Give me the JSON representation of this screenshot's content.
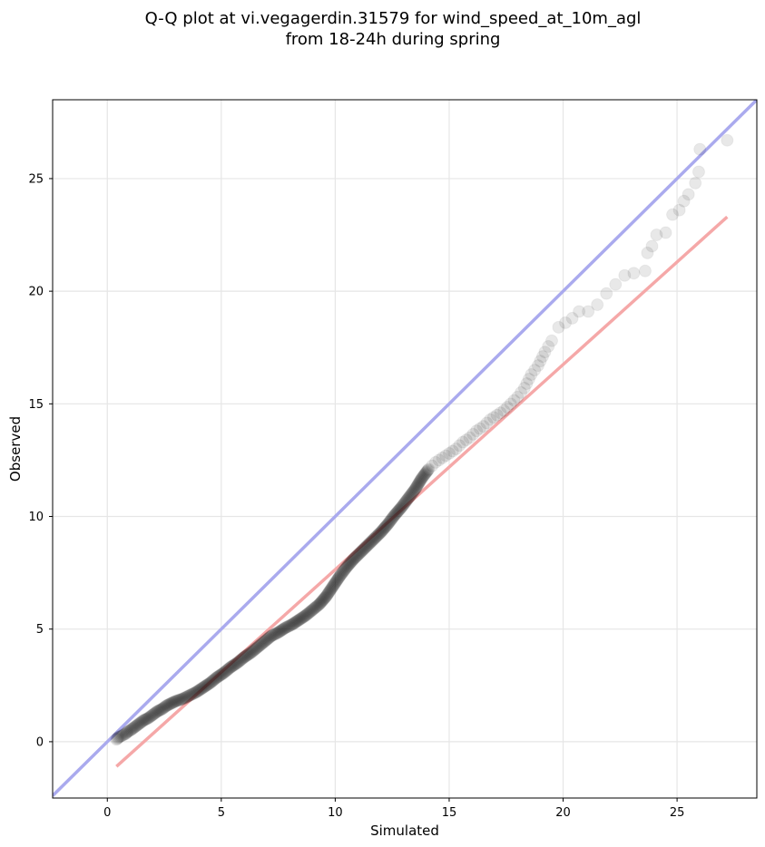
{
  "chart_data": {
    "type": "scatter",
    "title_line1": "Q-Q plot at vi.vegagerdin.31579 for wind_speed_at_10m_agl",
    "title_line2": "from 18-24h during spring",
    "xlabel": "Simulated",
    "ylabel": "Observed",
    "xlim": [
      -2.4,
      28.5
    ],
    "ylim": [
      -2.5,
      28.5
    ],
    "xticks": [
      0,
      5,
      10,
      15,
      20,
      25
    ],
    "yticks": [
      0,
      5,
      10,
      15,
      20,
      25
    ],
    "grid": true,
    "colors": {
      "points": "#000000",
      "identity_line": "#aaaaee",
      "fit_line": "#f5a8a8",
      "grid": "#e6e6e6"
    },
    "identity_line": {
      "x": [
        -2.4,
        28.5
      ],
      "y": [
        -2.4,
        28.5
      ]
    },
    "fit_line": {
      "x": [
        0.4,
        27.2
      ],
      "y": [
        -1.1,
        23.3
      ]
    },
    "quantiles": [
      [
        0.4,
        0.1
      ],
      [
        0.5,
        0.2
      ],
      [
        0.6,
        0.25
      ],
      [
        0.7,
        0.3
      ],
      [
        0.8,
        0.35
      ],
      [
        0.9,
        0.45
      ],
      [
        1.0,
        0.5
      ],
      [
        1.2,
        0.65
      ],
      [
        1.4,
        0.8
      ],
      [
        1.6,
        0.95
      ],
      [
        1.8,
        1.05
      ],
      [
        2.0,
        1.2
      ],
      [
        2.2,
        1.35
      ],
      [
        2.4,
        1.45
      ],
      [
        2.6,
        1.6
      ],
      [
        2.8,
        1.7
      ],
      [
        3.0,
        1.8
      ],
      [
        3.3,
        1.9
      ],
      [
        3.6,
        2.05
      ],
      [
        3.9,
        2.2
      ],
      [
        4.2,
        2.4
      ],
      [
        4.5,
        2.6
      ],
      [
        4.8,
        2.85
      ],
      [
        5.1,
        3.05
      ],
      [
        5.4,
        3.3
      ],
      [
        5.7,
        3.5
      ],
      [
        6.0,
        3.75
      ],
      [
        6.3,
        3.95
      ],
      [
        6.6,
        4.2
      ],
      [
        6.9,
        4.45
      ],
      [
        7.2,
        4.7
      ],
      [
        7.5,
        4.85
      ],
      [
        7.8,
        5.05
      ],
      [
        8.1,
        5.2
      ],
      [
        8.4,
        5.4
      ],
      [
        8.7,
        5.6
      ],
      [
        9.0,
        5.85
      ],
      [
        9.3,
        6.1
      ],
      [
        9.6,
        6.45
      ],
      [
        9.9,
        6.9
      ],
      [
        10.2,
        7.35
      ],
      [
        10.5,
        7.75
      ],
      [
        10.8,
        8.1
      ],
      [
        11.1,
        8.4
      ],
      [
        11.4,
        8.7
      ],
      [
        11.7,
        9.0
      ],
      [
        12.0,
        9.3
      ],
      [
        12.3,
        9.65
      ],
      [
        12.6,
        10.05
      ],
      [
        12.9,
        10.4
      ],
      [
        13.2,
        10.8
      ],
      [
        13.5,
        11.2
      ],
      [
        13.8,
        11.7
      ],
      [
        14.1,
        12.1
      ],
      [
        14.4,
        12.4
      ],
      [
        14.7,
        12.6
      ],
      [
        15.0,
        12.8
      ],
      [
        15.3,
        13.0
      ],
      [
        15.6,
        13.3
      ],
      [
        15.9,
        13.5
      ],
      [
        16.2,
        13.8
      ],
      [
        16.5,
        14.0
      ],
      [
        16.8,
        14.3
      ],
      [
        17.1,
        14.5
      ],
      [
        17.4,
        14.7
      ],
      [
        17.7,
        15.0
      ],
      [
        18.0,
        15.3
      ],
      [
        18.3,
        15.7
      ],
      [
        18.6,
        16.3
      ],
      [
        18.9,
        16.7
      ],
      [
        19.2,
        17.3
      ],
      [
        19.5,
        17.8
      ],
      [
        19.8,
        18.4
      ],
      [
        20.1,
        18.6
      ],
      [
        20.4,
        18.8
      ],
      [
        20.7,
        19.1
      ],
      [
        21.1,
        19.1
      ],
      [
        21.5,
        19.4
      ],
      [
        21.9,
        19.9
      ],
      [
        22.3,
        20.3
      ],
      [
        22.7,
        20.7
      ],
      [
        23.1,
        20.8
      ],
      [
        23.6,
        20.9
      ],
      [
        23.7,
        21.7
      ],
      [
        23.9,
        22.0
      ],
      [
        24.1,
        22.5
      ],
      [
        24.5,
        22.6
      ],
      [
        24.8,
        23.4
      ],
      [
        25.1,
        23.6
      ],
      [
        25.3,
        24.0
      ],
      [
        25.5,
        24.3
      ],
      [
        25.8,
        24.8
      ],
      [
        25.95,
        25.3
      ],
      [
        26.0,
        26.3
      ],
      [
        27.2,
        26.7
      ]
    ]
  }
}
